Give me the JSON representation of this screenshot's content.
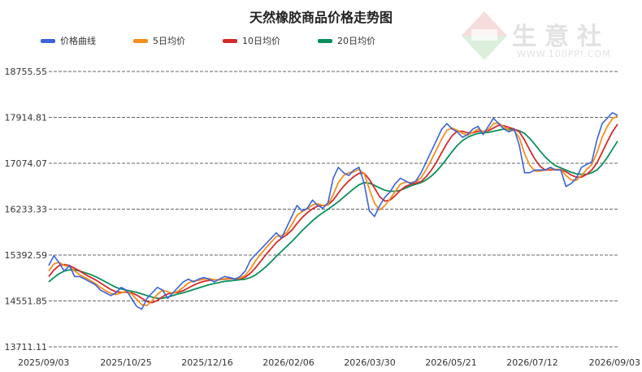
{
  "chart_data": {
    "type": "line",
    "title": "天然橡胶商品价格走势图",
    "x_tick_labels": [
      "2025/09/03",
      "2025/10/25",
      "2025/12/16",
      "2026/02/06",
      "2026/03/30",
      "2026/05/21",
      "2026/07/12",
      "2026/09/03"
    ],
    "y_tick_labels": [
      "13711.11",
      "14551.85",
      "15392.59",
      "16233.33",
      "17074.07",
      "17914.81",
      "18755.55"
    ],
    "ylim": [
      13711.11,
      18755.55
    ],
    "grid": "horizontal dashed",
    "legend_position": "top-left",
    "series": [
      {
        "name": "价格曲线",
        "color": "#3b63d9",
        "values": [
          15200,
          15380,
          15250,
          15100,
          15200,
          15000,
          15000,
          14950,
          14900,
          14850,
          14750,
          14700,
          14650,
          14700,
          14800,
          14750,
          14600,
          14450,
          14400,
          14600,
          14700,
          14800,
          14750,
          14600,
          14700,
          14800,
          14900,
          14950,
          14900,
          14950,
          14980,
          14950,
          14900,
          14950,
          15000,
          14980,
          14950,
          15000,
          15100,
          15300,
          15400,
          15500,
          15600,
          15700,
          15800,
          15700,
          15900,
          16100,
          16300,
          16200,
          16250,
          16400,
          16300,
          16250,
          16350,
          16800,
          17000,
          16900,
          16850,
          16950,
          17000,
          16700,
          16200,
          16100,
          16300,
          16450,
          16550,
          16700,
          16800,
          16750,
          16700,
          16750,
          16900,
          17100,
          17300,
          17500,
          17700,
          17800,
          17700,
          17650,
          17550,
          17600,
          17700,
          17750,
          17600,
          17750,
          17900,
          17800,
          17700,
          17650,
          17700,
          17400,
          16900,
          16900,
          16950,
          16950,
          16950,
          17000,
          16950,
          16950,
          16650,
          16700,
          16800,
          17000,
          17050,
          17100,
          17500,
          17800,
          17900,
          18000,
          17950
        ]
      },
      {
        "name": "5日均价",
        "color": "#f68e1e",
        "values": [
          15100,
          15230,
          15260,
          15200,
          15180,
          15100,
          15030,
          14980,
          14930,
          14870,
          14800,
          14740,
          14690,
          14670,
          14700,
          14730,
          14680,
          14580,
          14480,
          14470,
          14560,
          14670,
          14750,
          14720,
          14690,
          14730,
          14800,
          14880,
          14920,
          14930,
          14950,
          14960,
          14940,
          14940,
          14960,
          14970,
          14960,
          14970,
          15020,
          15140,
          15290,
          15410,
          15520,
          15630,
          15730,
          15750,
          15800,
          15950,
          16120,
          16190,
          16240,
          16310,
          16330,
          16300,
          16310,
          16500,
          16720,
          16850,
          16900,
          16920,
          16960,
          16880,
          16600,
          16340,
          16220,
          16300,
          16420,
          16560,
          16690,
          16730,
          16720,
          16730,
          16810,
          16960,
          17140,
          17330,
          17520,
          17680,
          17720,
          17680,
          17620,
          17590,
          17640,
          17700,
          17650,
          17690,
          17800,
          17810,
          17740,
          17680,
          17670,
          17540,
          17250,
          17040,
          16930,
          16930,
          16950,
          16970,
          16960,
          16960,
          16850,
          16770,
          16760,
          16850,
          16960,
          17050,
          17260,
          17550,
          17750,
          17890,
          17940
        ]
      },
      {
        "name": "10日均价",
        "color": "#d42b2b",
        "values": [
          15000,
          15120,
          15200,
          15220,
          15200,
          15150,
          15100,
          15040,
          14990,
          14940,
          14880,
          14820,
          14760,
          14720,
          14710,
          14710,
          14700,
          14660,
          14600,
          14540,
          14520,
          14560,
          14630,
          14680,
          14700,
          14710,
          14740,
          14790,
          14840,
          14880,
          14910,
          14930,
          14940,
          14940,
          14950,
          14960,
          14960,
          14960,
          14990,
          15060,
          15160,
          15280,
          15400,
          15510,
          15620,
          15700,
          15760,
          15850,
          15970,
          16080,
          16170,
          16240,
          16290,
          16300,
          16310,
          16400,
          16530,
          16650,
          16750,
          16830,
          16890,
          16890,
          16780,
          16620,
          16460,
          16380,
          16400,
          16480,
          16580,
          16650,
          16690,
          16710,
          16740,
          16830,
          16950,
          17100,
          17270,
          17440,
          17580,
          17660,
          17660,
          17630,
          17630,
          17660,
          17660,
          17670,
          17720,
          17770,
          17760,
          17730,
          17700,
          17650,
          17500,
          17320,
          17150,
          17020,
          16950,
          16950,
          16960,
          16960,
          16920,
          16860,
          16820,
          16820,
          16870,
          16950,
          17080,
          17270,
          17470,
          17650,
          17790
        ]
      },
      {
        "name": "20日均价",
        "color": "#0a8f5a",
        "values": [
          14900,
          14980,
          15050,
          15100,
          15120,
          15120,
          15100,
          15070,
          15040,
          15000,
          14950,
          14900,
          14850,
          14800,
          14770,
          14750,
          14730,
          14710,
          14680,
          14650,
          14620,
          14600,
          14600,
          14620,
          14650,
          14680,
          14700,
          14730,
          14760,
          14790,
          14820,
          14850,
          14870,
          14890,
          14910,
          14920,
          14930,
          14940,
          14950,
          14980,
          15030,
          15100,
          15180,
          15270,
          15370,
          15460,
          15550,
          15640,
          15740,
          15840,
          15930,
          16020,
          16100,
          16170,
          16230,
          16300,
          16370,
          16450,
          16530,
          16610,
          16680,
          16720,
          16710,
          16670,
          16620,
          16580,
          16560,
          16560,
          16580,
          16620,
          16660,
          16690,
          16720,
          16770,
          16840,
          16930,
          17040,
          17160,
          17290,
          17400,
          17490,
          17550,
          17590,
          17620,
          17630,
          17640,
          17660,
          17680,
          17700,
          17700,
          17690,
          17670,
          17620,
          17530,
          17420,
          17300,
          17190,
          17100,
          17030,
          16990,
          16950,
          16910,
          16880,
          16870,
          16870,
          16900,
          16950,
          17050,
          17180,
          17330,
          17480
        ]
      }
    ]
  }
}
